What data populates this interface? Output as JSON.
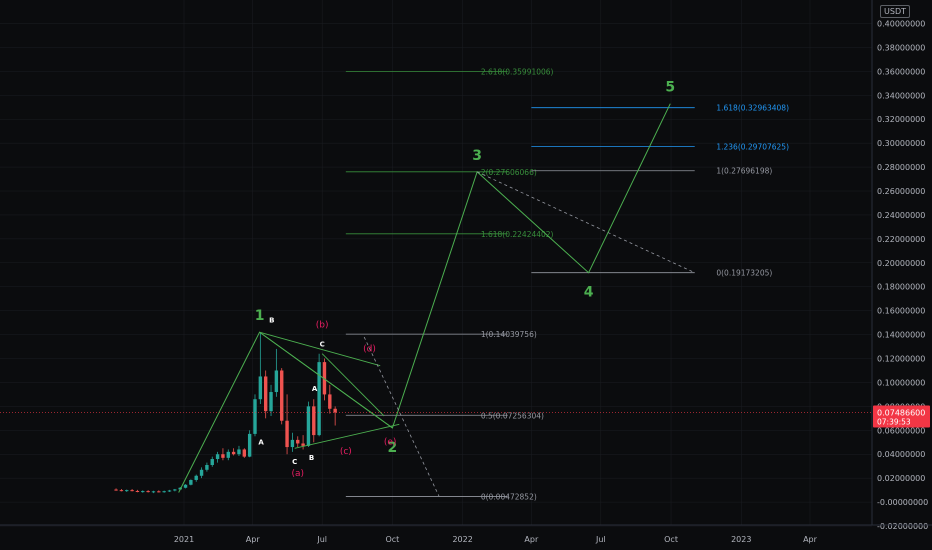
{
  "currency": "USDT",
  "price_tag": {
    "price": "0.07486600",
    "countdown": "07:39:53",
    "color": "#f23645"
  },
  "colors": {
    "background": "#0b0c0e",
    "axis_text": "#b2b5be",
    "grid": "#1c1e23",
    "wave_green": "#4caf50",
    "wave_red": "#e91e63",
    "fib_gray": "#9598a1",
    "fib_green": "#388e3c",
    "fib_blue": "#2196f3",
    "candle_up": "#26a69a",
    "candle_down": "#ef5350"
  },
  "chart_data": {
    "type": "candlestick",
    "y_ticks": [
      "0.40000000",
      "0.38000000",
      "0.36000000",
      "0.34000000",
      "0.32000000",
      "0.30000000",
      "0.28000000",
      "0.26000000",
      "0.24000000",
      "0.22000000",
      "0.20000000",
      "0.18000000",
      "0.16000000",
      "0.14000000",
      "0.12000000",
      "0.10000000",
      "0.08000000",
      "0.06000000",
      "0.04000000",
      "0.02000000",
      "-0.00000000",
      "-0.02000000"
    ],
    "x_ticks": [
      "2021",
      "Apr",
      "Jul",
      "Oct",
      "2022",
      "Apr",
      "Jul",
      "Oct",
      "2023",
      "Apr"
    ],
    "candles": [
      {
        "t": "2020-10-04",
        "o": 0.0105,
        "h": 0.0115,
        "l": 0.0095,
        "c": 0.01
      },
      {
        "t": "2020-10-11",
        "o": 0.01,
        "h": 0.011,
        "l": 0.009,
        "c": 0.0095
      },
      {
        "t": "2020-10-18",
        "o": 0.0095,
        "h": 0.0105,
        "l": 0.0085,
        "c": 0.01
      },
      {
        "t": "2020-10-25",
        "o": 0.01,
        "h": 0.011,
        "l": 0.009,
        "c": 0.0093
      },
      {
        "t": "2020-11-01",
        "o": 0.0093,
        "h": 0.0102,
        "l": 0.0082,
        "c": 0.0088
      },
      {
        "t": "2020-11-08",
        "o": 0.0088,
        "h": 0.0098,
        "l": 0.0078,
        "c": 0.0092
      },
      {
        "t": "2020-11-15",
        "o": 0.0092,
        "h": 0.01,
        "l": 0.008,
        "c": 0.0085
      },
      {
        "t": "2020-11-22",
        "o": 0.0085,
        "h": 0.0095,
        "l": 0.0075,
        "c": 0.009
      },
      {
        "t": "2020-11-29",
        "o": 0.009,
        "h": 0.0098,
        "l": 0.008,
        "c": 0.0087
      },
      {
        "t": "2020-12-06",
        "o": 0.0087,
        "h": 0.0096,
        "l": 0.0078,
        "c": 0.0091
      },
      {
        "t": "2020-12-13",
        "o": 0.0091,
        "h": 0.0102,
        "l": 0.0084,
        "c": 0.0097
      },
      {
        "t": "2020-12-20",
        "o": 0.0097,
        "h": 0.011,
        "l": 0.009,
        "c": 0.0106
      },
      {
        "t": "2020-12-27",
        "o": 0.0106,
        "h": 0.0125,
        "l": 0.01,
        "c": 0.012
      },
      {
        "t": "2021-01-03",
        "o": 0.012,
        "h": 0.015,
        "l": 0.0115,
        "c": 0.0145
      },
      {
        "t": "2021-01-10",
        "o": 0.0145,
        "h": 0.019,
        "l": 0.014,
        "c": 0.0185
      },
      {
        "t": "2021-01-17",
        "o": 0.0185,
        "h": 0.023,
        "l": 0.017,
        "c": 0.022
      },
      {
        "t": "2021-01-24",
        "o": 0.022,
        "h": 0.029,
        "l": 0.02,
        "c": 0.027
      },
      {
        "t": "2021-01-31",
        "o": 0.027,
        "h": 0.033,
        "l": 0.0255,
        "c": 0.031
      },
      {
        "t": "2021-02-07",
        "o": 0.031,
        "h": 0.038,
        "l": 0.0295,
        "c": 0.036
      },
      {
        "t": "2021-02-14",
        "o": 0.036,
        "h": 0.042,
        "l": 0.033,
        "c": 0.04
      },
      {
        "t": "2021-02-21",
        "o": 0.04,
        "h": 0.045,
        "l": 0.035,
        "c": 0.037
      },
      {
        "t": "2021-02-28",
        "o": 0.037,
        "h": 0.044,
        "l": 0.035,
        "c": 0.042
      },
      {
        "t": "2021-03-07",
        "o": 0.042,
        "h": 0.045,
        "l": 0.039,
        "c": 0.04
      },
      {
        "t": "2021-03-14",
        "o": 0.04,
        "h": 0.047,
        "l": 0.0385,
        "c": 0.044
      },
      {
        "t": "2021-03-21",
        "o": 0.044,
        "h": 0.045,
        "l": 0.037,
        "c": 0.038
      },
      {
        "t": "2021-03-28",
        "o": 0.038,
        "h": 0.06,
        "l": 0.0375,
        "c": 0.057
      },
      {
        "t": "2021-04-04",
        "o": 0.057,
        "h": 0.09,
        "l": 0.055,
        "c": 0.086
      },
      {
        "t": "2021-04-11",
        "o": 0.086,
        "h": 0.142,
        "l": 0.082,
        "c": 0.105
      },
      {
        "t": "2021-04-18",
        "o": 0.105,
        "h": 0.11,
        "l": 0.07,
        "c": 0.076
      },
      {
        "t": "2021-04-25",
        "o": 0.076,
        "h": 0.098,
        "l": 0.072,
        "c": 0.092
      },
      {
        "t": "2021-05-02",
        "o": 0.092,
        "h": 0.128,
        "l": 0.088,
        "c": 0.11
      },
      {
        "t": "2021-05-09",
        "o": 0.11,
        "h": 0.112,
        "l": 0.065,
        "c": 0.068
      },
      {
        "t": "2021-05-16",
        "o": 0.068,
        "h": 0.09,
        "l": 0.04,
        "c": 0.046
      },
      {
        "t": "2021-05-23",
        "o": 0.046,
        "h": 0.058,
        "l": 0.042,
        "c": 0.052
      },
      {
        "t": "2021-05-30",
        "o": 0.052,
        "h": 0.055,
        "l": 0.046,
        "c": 0.049
      },
      {
        "t": "2021-06-06",
        "o": 0.049,
        "h": 0.056,
        "l": 0.044,
        "c": 0.047
      },
      {
        "t": "2021-06-13",
        "o": 0.047,
        "h": 0.084,
        "l": 0.046,
        "c": 0.08
      },
      {
        "t": "2021-06-20",
        "o": 0.08,
        "h": 0.086,
        "l": 0.05,
        "c": 0.056
      },
      {
        "t": "2021-06-27",
        "o": 0.056,
        "h": 0.124,
        "l": 0.055,
        "c": 0.117
      },
      {
        "t": "2021-07-04",
        "o": 0.117,
        "h": 0.12,
        "l": 0.085,
        "c": 0.09
      },
      {
        "t": "2021-07-11",
        "o": 0.09,
        "h": 0.098,
        "l": 0.074,
        "c": 0.078
      },
      {
        "t": "2021-07-18",
        "o": 0.078,
        "h": 0.08,
        "l": 0.064,
        "c": 0.0749
      }
    ],
    "fib_levels": [
      {
        "label": "2.618(0.35991006)",
        "value": 0.35991006,
        "color": "fib_green",
        "t1": "2021-08-01",
        "t2": "2022-03-01"
      },
      {
        "label": "2(0.27606066)",
        "value": 0.27606066,
        "color": "fib_green",
        "t1": "2021-08-01",
        "t2": "2022-03-01"
      },
      {
        "label": "1.618(0.22424402)",
        "value": 0.22424402,
        "color": "fib_green",
        "t1": "2021-08-01",
        "t2": "2022-03-01"
      },
      {
        "label": "1(0.14039756)",
        "value": 0.14039756,
        "color": "fib_gray",
        "t1": "2021-08-01",
        "t2": "2022-03-01"
      },
      {
        "label": "0.5(0.07256304)",
        "value": 0.07256304,
        "color": "fib_gray",
        "t1": "2021-08-01",
        "t2": "2022-03-01"
      },
      {
        "label": "0(0.00472852)",
        "value": 0.00472852,
        "color": "fib_gray",
        "t1": "2021-08-01",
        "t2": "2022-03-01"
      },
      {
        "label": "1.618(0.32963408)",
        "value": 0.32963408,
        "color": "fib_blue",
        "t1": "2022-04-01",
        "t2": "2022-11-01"
      },
      {
        "label": "1.236(0.29707625)",
        "value": 0.29707625,
        "color": "fib_blue",
        "t1": "2022-04-01",
        "t2": "2022-11-01"
      },
      {
        "label": "1(0.27696198)",
        "value": 0.27696198,
        "color": "fib_gray",
        "t1": "2022-04-01",
        "t2": "2022-11-01"
      },
      {
        "label": "0(0.19173205)",
        "value": 0.19173205,
        "color": "fib_gray",
        "t1": "2022-04-01",
        "t2": "2022-11-01"
      }
    ],
    "elliott_waves": [
      {
        "label": "1",
        "t": "2021-04-10",
        "v": 0.142
      },
      {
        "label": "2",
        "t": "2021-10-01",
        "v": 0.062
      },
      {
        "label": "3",
        "t": "2022-01-20",
        "v": 0.276
      },
      {
        "label": "4",
        "t": "2022-06-15",
        "v": 0.1917
      },
      {
        "label": "5",
        "t": "2022-09-30",
        "v": 0.333
      }
    ],
    "wave_origin": {
      "t": "2020-12-25",
      "v": 0.008
    },
    "corrective_labels_white": [
      {
        "label": "A",
        "t": "2021-04-12",
        "v": 0.048
      },
      {
        "label": "B",
        "t": "2021-04-26",
        "v": 0.15
      },
      {
        "label": "C",
        "t": "2021-05-26",
        "v": 0.032
      },
      {
        "label": "A",
        "t": "2021-06-21",
        "v": 0.093
      },
      {
        "label": "B",
        "t": "2021-06-17",
        "v": 0.035
      },
      {
        "label": "C",
        "t": "2021-07-01",
        "v": 0.13
      }
    ],
    "corrective_labels_red": [
      {
        "label": "(a)",
        "t": "2021-05-30",
        "v": 0.022
      },
      {
        "label": "(b)",
        "t": "2021-07-01",
        "v": 0.146
      },
      {
        "label": "(c)",
        "t": "2021-08-01",
        "v": 0.04
      },
      {
        "label": "(d)",
        "t": "2021-09-01",
        "v": 0.126
      },
      {
        "label": "(e)",
        "t": "2021-09-28",
        "v": 0.048
      }
    ]
  }
}
